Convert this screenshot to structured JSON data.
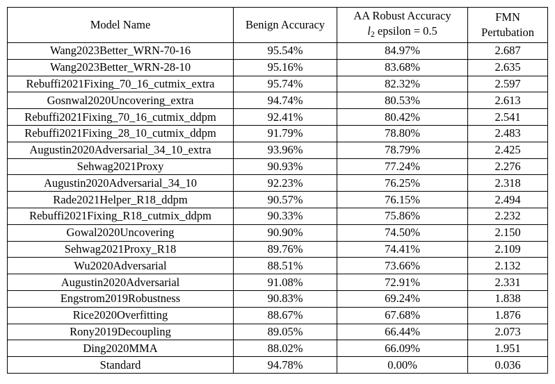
{
  "table": {
    "headers": {
      "model": "Model Name",
      "benign": "Benign Accuracy",
      "aa_line1": "AA Robust Accuracy",
      "aa_var": "l",
      "aa_sub": "2",
      "aa_rest": " epsilon = 0.5",
      "fmn_line1": "FMN",
      "fmn_line2": "Pertubation"
    },
    "rows": [
      {
        "model": "Wang2023Better_WRN-70-16",
        "benign": "95.54%",
        "aa": "84.97%",
        "fmn": "2.687"
      },
      {
        "model": "Wang2023Better_WRN-28-10",
        "benign": "95.16%",
        "aa": "83.68%",
        "fmn": "2.635"
      },
      {
        "model": "Rebuffi2021Fixing_70_16_cutmix_extra",
        "benign": "95.74%",
        "aa": "82.32%",
        "fmn": "2.597"
      },
      {
        "model": "Gosnwal2020Uncovering_extra",
        "benign": "94.74%",
        "aa": "80.53%",
        "fmn": "2.613"
      },
      {
        "model": "Rebuffi2021Fixing_70_16_cutmix_ddpm",
        "benign": "92.41%",
        "aa": "80.42%",
        "fmn": "2.541"
      },
      {
        "model": "Rebuffi2021Fixing_28_10_cutmix_ddpm",
        "benign": "91.79%",
        "aa": "78.80%",
        "fmn": "2.483"
      },
      {
        "model": "Augustin2020Adversarial_34_10_extra",
        "benign": "93.96%",
        "aa": "78.79%",
        "fmn": "2.425"
      },
      {
        "model": "Sehwag2021Proxy",
        "benign": "90.93%",
        "aa": "77.24%",
        "fmn": "2.276"
      },
      {
        "model": "Augustin2020Adversarial_34_10",
        "benign": "92.23%",
        "aa": "76.25%",
        "fmn": "2.318"
      },
      {
        "model": "Rade2021Helper_R18_ddpm",
        "benign": "90.57%",
        "aa": "76.15%",
        "fmn": "2.494"
      },
      {
        "model": "Rebuffi2021Fixing_R18_cutmix_ddpm",
        "benign": "90.33%",
        "aa": "75.86%",
        "fmn": "2.232"
      },
      {
        "model": "Gowal2020Uncovering",
        "benign": "90.90%",
        "aa": "74.50%",
        "fmn": "2.150"
      },
      {
        "model": "Sehwag2021Proxy_R18",
        "benign": "89.76%",
        "aa": "74.41%",
        "fmn": "2.109"
      },
      {
        "model": "Wu2020Adversarial",
        "benign": "88.51%",
        "aa": "73.66%",
        "fmn": "2.132"
      },
      {
        "model": "Augustin2020Adversarial",
        "benign": "91.08%",
        "aa": "72.91%",
        "fmn": "2.331"
      },
      {
        "model": "Engstrom2019Robustness",
        "benign": "90.83%",
        "aa": "69.24%",
        "fmn": "1.838"
      },
      {
        "model": "Rice2020Overfitting",
        "benign": "88.67%",
        "aa": "67.68%",
        "fmn": "1.876"
      },
      {
        "model": "Rony2019Decoupling",
        "benign": "89.05%",
        "aa": "66.44%",
        "fmn": "2.073"
      },
      {
        "model": "Ding2020MMA",
        "benign": "88.02%",
        "aa": "66.09%",
        "fmn": "1.951"
      },
      {
        "model": "Standard",
        "benign": "94.78%",
        "aa": "0.00%",
        "fmn": "0.036"
      }
    ]
  }
}
